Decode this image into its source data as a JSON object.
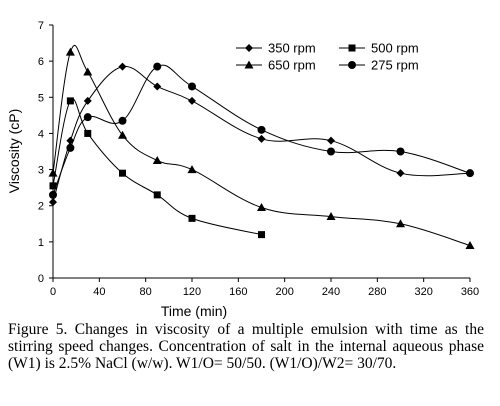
{
  "chart_data": {
    "type": "line",
    "title": "",
    "xlabel": "Time (min)",
    "ylabel": "Viscosity (cP)",
    "xlim": [
      0,
      360
    ],
    "ylim": [
      0,
      7
    ],
    "xticks": [
      0,
      40,
      80,
      120,
      160,
      200,
      240,
      280,
      320,
      360
    ],
    "yticks": [
      0,
      1,
      2,
      3,
      4,
      5,
      6,
      7
    ],
    "grid": false,
    "legend_placement": "top-right",
    "series": [
      {
        "name": "350 rpm",
        "marker": "diamond",
        "x": [
          0,
          15,
          30,
          60,
          90,
          120,
          180,
          240,
          300,
          360
        ],
        "y": [
          2.1,
          3.8,
          4.9,
          5.85,
          5.3,
          4.9,
          3.85,
          3.8,
          2.9,
          2.9
        ]
      },
      {
        "name": "500 rpm",
        "marker": "square",
        "x": [
          0,
          15,
          30,
          60,
          90,
          120,
          180
        ],
        "y": [
          2.55,
          4.9,
          4.0,
          2.9,
          2.3,
          1.65,
          1.2
        ]
      },
      {
        "name": "650 rpm",
        "marker": "triangle",
        "x": [
          0,
          15,
          30,
          60,
          90,
          120,
          180,
          240,
          300,
          360
        ],
        "y": [
          2.9,
          6.25,
          5.7,
          3.95,
          3.25,
          3.0,
          1.95,
          1.7,
          1.5,
          0.9
        ]
      },
      {
        "name": "275 rpm",
        "marker": "circle",
        "x": [
          0,
          15,
          30,
          60,
          90,
          120,
          180,
          240,
          300,
          360
        ],
        "y": [
          2.3,
          3.6,
          4.45,
          4.35,
          5.85,
          5.3,
          4.1,
          3.5,
          3.5,
          2.9
        ]
      }
    ]
  },
  "caption": "Figure 5. Changes in viscosity of a multiple emulsion with time as the stirring speed changes. Concentration of salt in the internal aqueous phase (W1) is 2.5% NaCl (w/w). W1/O= 50/50. (W1/O)/W2= 30/70."
}
